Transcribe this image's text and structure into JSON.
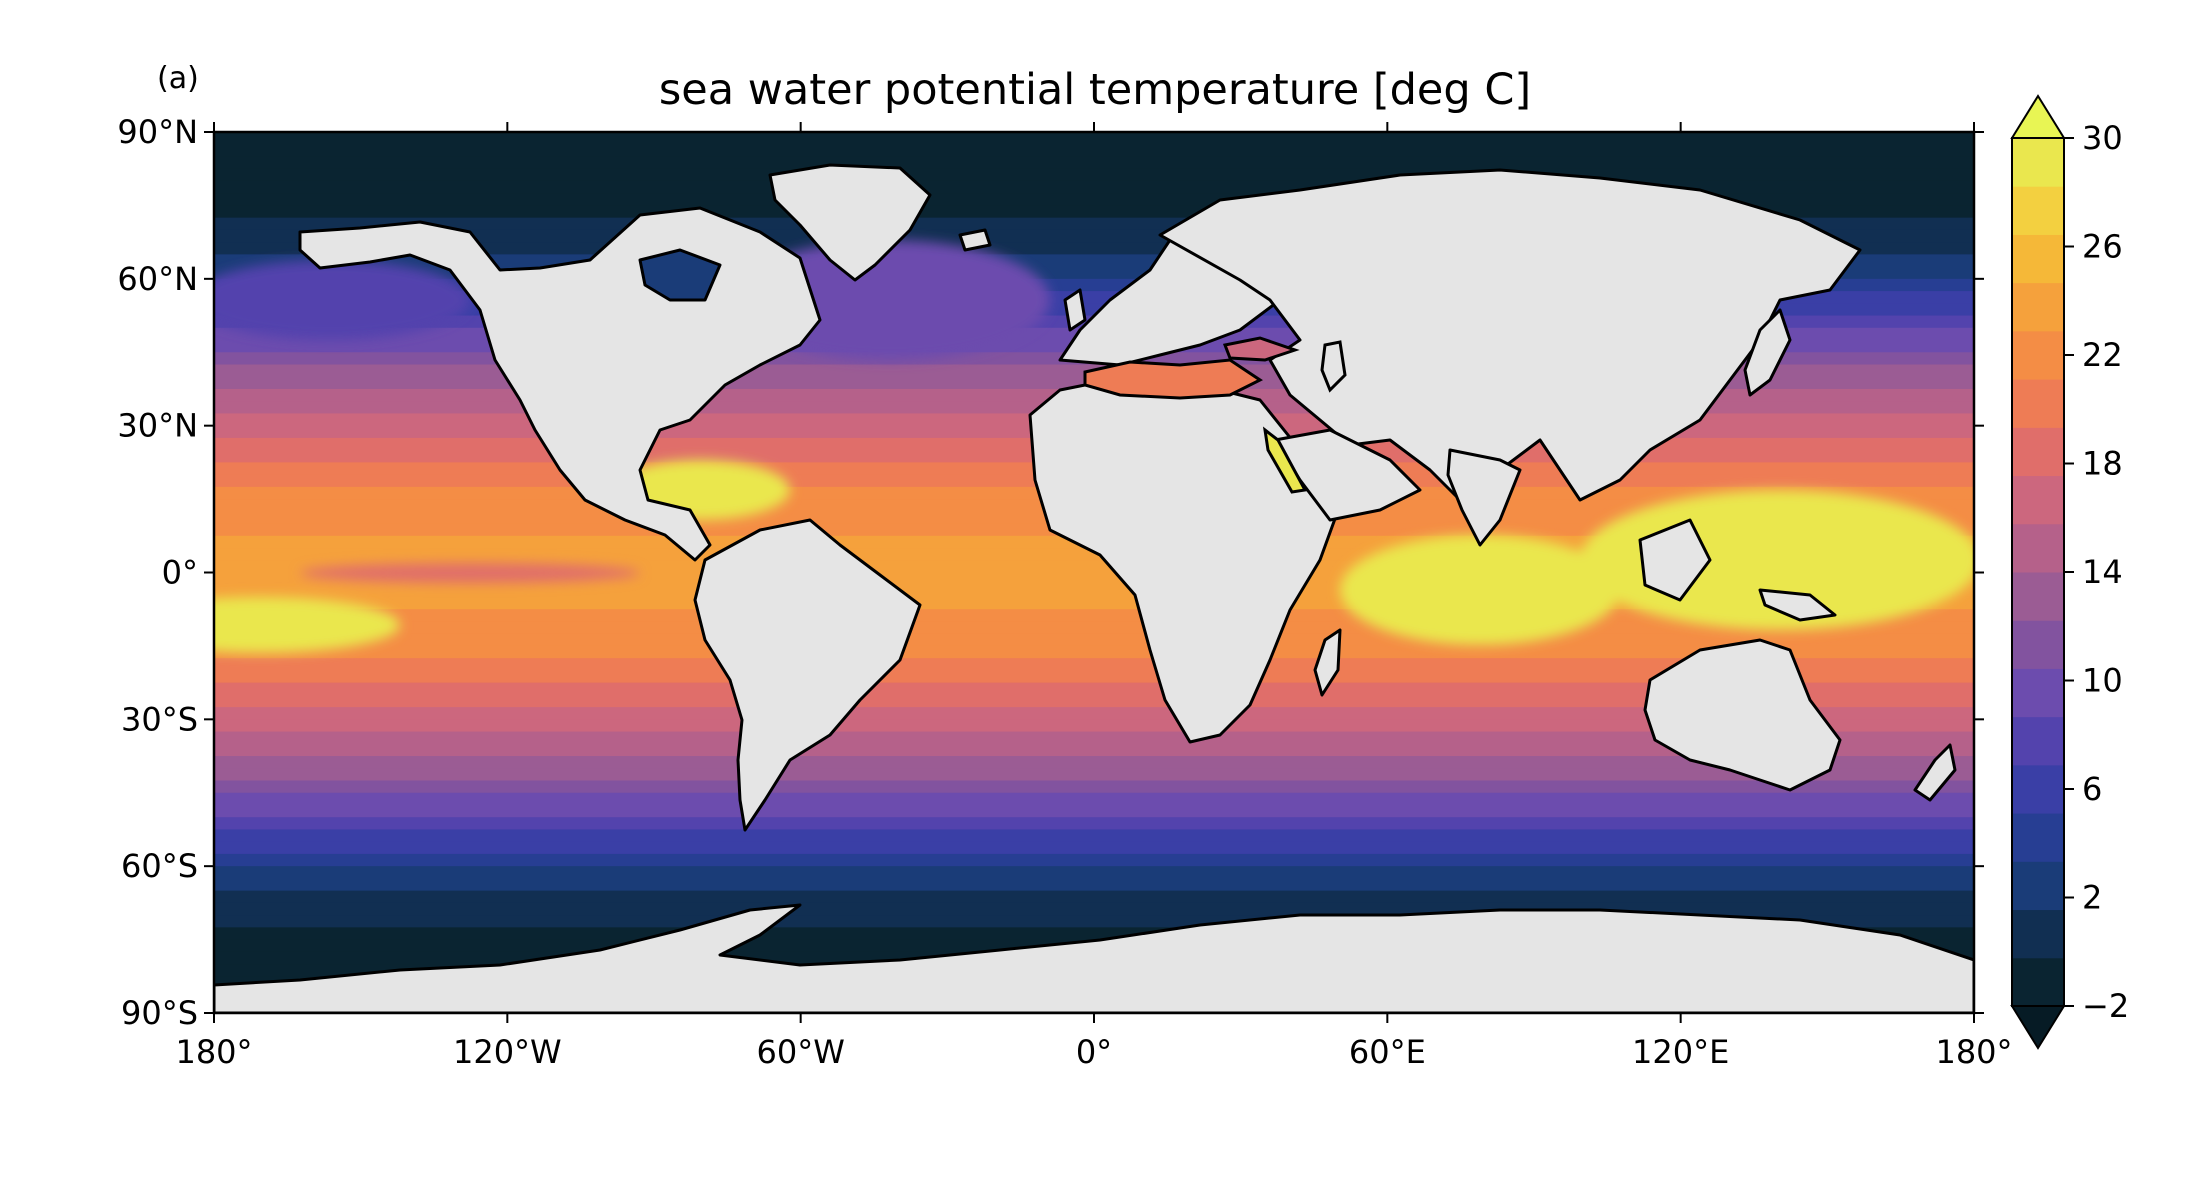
{
  "panel_label": "(a)",
  "title": "sea water potential temperature [deg C]",
  "map": {
    "projection": "PlateCarree",
    "land_color": "#e5e5e5",
    "coastline_color": "#000000",
    "field": "sea water potential temperature",
    "units": "deg C",
    "lon_ticks": [
      {
        "value": -180,
        "label": "180°"
      },
      {
        "value": -120,
        "label": "120°W"
      },
      {
        "value": -60,
        "label": "60°W"
      },
      {
        "value": 0,
        "label": "0°"
      },
      {
        "value": 60,
        "label": "60°E"
      },
      {
        "value": 120,
        "label": "120°E"
      },
      {
        "value": 180,
        "label": "180°"
      }
    ],
    "lat_ticks": [
      {
        "value": 90,
        "label": "90°N"
      },
      {
        "value": 60,
        "label": "60°N"
      },
      {
        "value": 30,
        "label": "30°N"
      },
      {
        "value": 0,
        "label": "0°"
      },
      {
        "value": -30,
        "label": "30°S"
      },
      {
        "value": -60,
        "label": "60°S"
      },
      {
        "value": -90,
        "label": "90°S"
      }
    ],
    "lon_range": [
      -180,
      180
    ],
    "lat_range": [
      -90,
      90
    ]
  },
  "colorbar": {
    "min": -2,
    "max": 30,
    "level_step": 2,
    "extend": "both",
    "tick_values": [
      30,
      26,
      22,
      18,
      14,
      10,
      6,
      2,
      -2
    ],
    "tick_labels": [
      "30",
      "26",
      "22",
      "18",
      "14",
      "10",
      "6",
      "2",
      "−2"
    ],
    "colors": [
      "#0a2431",
      "#112f52",
      "#1a3c78",
      "#273e93",
      "#3a3fa6",
      "#5343ad",
      "#6c4cae",
      "#82539f",
      "#9b5c94",
      "#b5618a",
      "#cc677e",
      "#e06e6a",
      "#ee7c55",
      "#f48d45",
      "#f5a13c",
      "#f5b838",
      "#f3d040",
      "#eae74e"
    ],
    "under_color": "#061b25",
    "over_color": "#e8f554"
  }
}
